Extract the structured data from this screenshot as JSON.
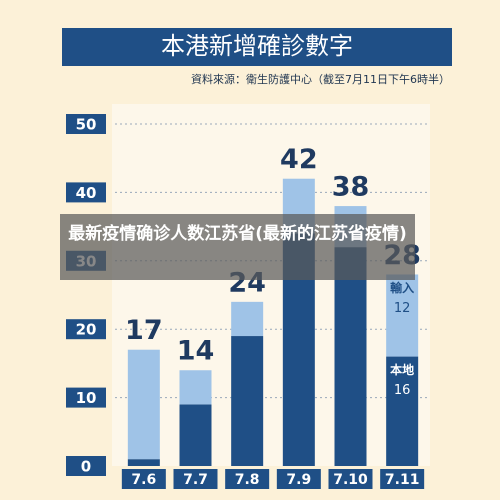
{
  "chart_data": {
    "type": "stacked_bar",
    "title": "本港新增確診數字",
    "subtitle": "資料來源：衛生防護中心（截至7月11日下午6時半）",
    "categories": [
      "7.6",
      "7.7",
      "7.8",
      "7.9",
      "7.10",
      "7.11"
    ],
    "series": [
      {
        "name": "本地",
        "color": "#1f4f86",
        "values": [
          1,
          9,
          19,
          34,
          32,
          16
        ]
      },
      {
        "name": "輸入",
        "color": "#9fc3e7",
        "values": [
          16,
          5,
          5,
          8,
          6,
          12
        ]
      }
    ],
    "totals": [
      17,
      14,
      24,
      42,
      38,
      28
    ],
    "ylim": [
      0,
      50
    ],
    "yticks": [
      0,
      10,
      20,
      30,
      40,
      50
    ],
    "grid": true,
    "overlay_caption": "最新疫情确诊人数江苏省(最新的江苏省疫情)"
  }
}
